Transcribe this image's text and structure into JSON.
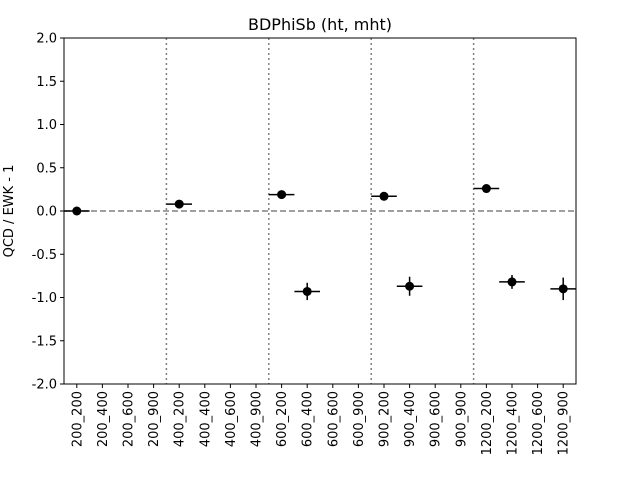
{
  "chart_data": {
    "type": "scatter",
    "title": "BDPhiSb (ht, mht)",
    "xlabel": "",
    "ylabel": "QCD / EWK - 1",
    "ylim": [
      -2.0,
      2.0
    ],
    "yticks": [
      "-2.0",
      "-1.5",
      "-1.0",
      "-0.5",
      "0.0",
      "0.5",
      "1.0",
      "1.5",
      "2.0"
    ],
    "categories": [
      "200_200",
      "200_400",
      "200_600",
      "200_900",
      "400_200",
      "400_400",
      "400_600",
      "400_900",
      "600_200",
      "600_400",
      "600_600",
      "600_900",
      "900_200",
      "900_400",
      "900_600",
      "900_900",
      "1200_200",
      "1200_400",
      "1200_600",
      "1200_900"
    ],
    "points": [
      {
        "category": "200_200",
        "y": 0.0,
        "yerr": 0.01
      },
      {
        "category": "400_200",
        "y": 0.08,
        "yerr": 0.02
      },
      {
        "category": "600_200",
        "y": 0.19,
        "yerr": 0.03
      },
      {
        "category": "600_400",
        "y": -0.93,
        "yerr": 0.1
      },
      {
        "category": "900_200",
        "y": 0.17,
        "yerr": 0.03
      },
      {
        "category": "900_400",
        "y": -0.87,
        "yerr": 0.11
      },
      {
        "category": "1200_200",
        "y": 0.26,
        "yerr": 0.03
      },
      {
        "category": "1200_400",
        "y": -0.82,
        "yerr": 0.08
      },
      {
        "category": "1200_900",
        "y": -0.9,
        "yerr": 0.13
      }
    ],
    "reference_line": {
      "y": 0.0,
      "style": "dashed",
      "color": "#808080"
    },
    "group_separators": [
      3.5,
      7.5,
      11.5,
      15.5
    ],
    "grid": false,
    "colors": {
      "points": "#000000",
      "separators": "#808080"
    }
  }
}
